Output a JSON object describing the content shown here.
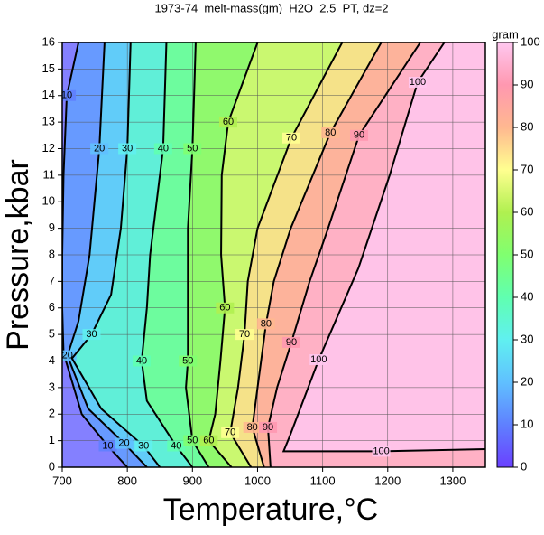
{
  "chart_data": {
    "type": "contour",
    "title": "1973-74_melt-mass(gm)_H2O_2.5_PT, dz=2",
    "x_label": "Temperature,°C",
    "y_label": "Pressure,kbar",
    "xlim": [
      700,
      1350
    ],
    "ylim": [
      0,
      16
    ],
    "xticks": [
      700,
      800,
      900,
      1000,
      1100,
      1200,
      1300
    ],
    "yticks": [
      0,
      1,
      2,
      3,
      4,
      5,
      6,
      7,
      8,
      9,
      10,
      11,
      12,
      13,
      14,
      15,
      16
    ],
    "grid": true,
    "contours": [
      {
        "level": 10,
        "x": [
          725,
          707,
          702,
          700,
          700,
          702,
          730,
          770,
          800
        ],
        "y": [
          16,
          14,
          11,
          8,
          6,
          4.3,
          2,
          0.8,
          0
        ]
      },
      {
        "level": 20,
        "x": [
          765,
          757,
          742,
          725,
          708,
          740,
          795,
          830
        ],
        "y": [
          16,
          12,
          8,
          5.5,
          4.2,
          2.2,
          0.9,
          0
        ]
      },
      {
        "level": 30,
        "x": [
          805,
          800,
          790,
          775,
          745,
          715,
          760,
          825,
          850
        ],
        "y": [
          16,
          12,
          9,
          6.5,
          5,
          4.1,
          2.2,
          0.8,
          0
        ]
      },
      {
        "level": 40,
        "x": [
          860,
          855,
          835,
          830,
          822,
          830,
          875,
          900
        ],
        "y": [
          16,
          12,
          8,
          6,
          4,
          2.5,
          0.8,
          0
        ]
      },
      {
        "level": 50,
        "x": [
          905,
          900,
          893,
          893,
          893,
          890,
          900,
          925
        ],
        "y": [
          16,
          12,
          9,
          6.5,
          4,
          3,
          1,
          0
        ]
      },
      {
        "level": 60,
        "x": [
          1000,
          955,
          945,
          944,
          950,
          943,
          935,
          925,
          960
        ],
        "y": [
          16,
          13,
          11,
          8,
          6,
          4,
          2,
          1,
          0
        ]
      },
      {
        "level": 70,
        "x": [
          1130,
          1052,
          1000,
          985,
          980,
          970,
          958,
          990
        ],
        "y": [
          16,
          12.4,
          9,
          7,
          5,
          3,
          1.3,
          0
        ]
      },
      {
        "level": 80,
        "x": [
          1190,
          1112,
          1051,
          1025,
          1013,
          1000,
          992,
          1010
        ],
        "y": [
          16,
          12.6,
          9,
          7,
          5.4,
          3,
          1.5,
          0
        ]
      },
      {
        "level": 90,
        "x": [
          1250,
          1156,
          1107,
          1080,
          1052,
          1030,
          1016,
          1020
        ],
        "y": [
          16,
          12.5,
          8.9,
          7,
          4.7,
          3,
          1.5,
          0
        ]
      },
      {
        "level": 100,
        "x": [
          1287,
          1246,
          1203,
          1155,
          1094,
          1050,
          1040,
          1190,
          1350
        ],
        "y": [
          16,
          14.5,
          11,
          7.5,
          4.05,
          1.2,
          0.6,
          0.6,
          0.68
        ]
      }
    ],
    "colorbar": {
      "label": "gram",
      "lim": [
        0,
        100
      ],
      "ticks": [
        0,
        10,
        20,
        30,
        40,
        50,
        60,
        70,
        80,
        90,
        100
      ],
      "colors": [
        "#6a40ff",
        "#5f80ff",
        "#60c0ff",
        "#60f0f0",
        "#60ffb0",
        "#80ff70",
        "#b0f050",
        "#ffff90",
        "#ffb890",
        "#ff98b0",
        "#ffc8f0"
      ]
    }
  }
}
